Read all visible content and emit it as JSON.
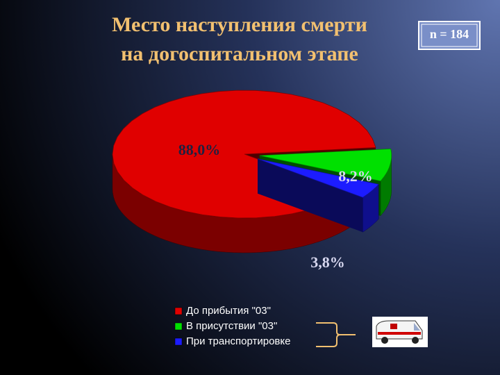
{
  "chart_data": {
    "type": "pie3d",
    "title": [
      "Место наступления смерти",
      "на догоспитальном этапе"
    ],
    "annotation": "n = 184",
    "categories": [
      "До прибытия \"03\"",
      "В присутствии \"03\"",
      "При транспортировке"
    ],
    "values": [
      88.0,
      8.2,
      3.8
    ],
    "value_labels": [
      "88,0%",
      "8,2%",
      "3,8%"
    ],
    "colors": [
      "#e00000",
      "#00e000",
      "#1c1cff"
    ]
  }
}
